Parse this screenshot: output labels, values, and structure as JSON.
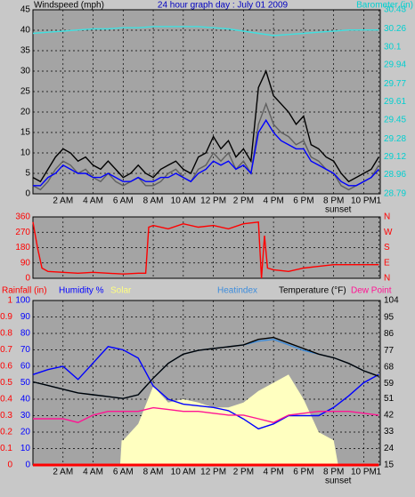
{
  "chart_data": [
    {
      "type": "line",
      "title": "24 hour graph day : July 01 2009",
      "ylabel": "Windspeed (mph)",
      "y2label": "Barometer (in)",
      "xlim": [
        0,
        23.1
      ],
      "xticks": [
        {
          "value": 2,
          "label": "2 AM"
        },
        {
          "value": 4,
          "label": "4 AM"
        },
        {
          "value": 6,
          "label": "6 AM"
        },
        {
          "value": 8,
          "label": "8 AM"
        },
        {
          "value": 10,
          "label": "10 AM"
        },
        {
          "value": 12,
          "label": "12 PM"
        },
        {
          "value": 14,
          "label": "2 PM"
        },
        {
          "value": 16,
          "label": "4 PM"
        },
        {
          "value": 18,
          "label": "6 PM"
        },
        {
          "value": 20,
          "label": "8 PM"
        },
        {
          "value": 22,
          "label": "10 PM"
        },
        {
          "value": 23,
          "label": "1"
        }
      ],
      "annotations": [
        {
          "text": "sunset",
          "x": 20.3
        }
      ],
      "ylim": [
        0,
        45
      ],
      "yticks": [
        0,
        5,
        10,
        15,
        20,
        25,
        30,
        35,
        40,
        45
      ],
      "y2lim": [
        28.79,
        30.43
      ],
      "y2ticks": [
        28.79,
        28.96,
        29.12,
        29.28,
        29.45,
        29.61,
        29.77,
        29.94,
        30.1,
        30.26,
        30.43
      ],
      "grid": true,
      "series": [
        {
          "color": "#000000",
          "x": [
            0,
            0.5,
            1,
            1.5,
            2,
            2.5,
            3,
            3.5,
            4,
            4.5,
            5,
            5.5,
            6,
            6.5,
            7,
            7.5,
            8,
            8.5,
            9,
            9.5,
            10,
            10.5,
            11,
            11.5,
            12,
            12.5,
            13,
            13.5,
            14,
            14.5,
            15,
            15.5,
            16,
            16.5,
            17,
            17.5,
            18,
            18.5,
            19,
            19.5,
            20,
            20.5,
            21,
            21.5,
            22,
            22.5,
            23
          ],
          "values": [
            4,
            3,
            6,
            9,
            11,
            10,
            8,
            9,
            7,
            6,
            8,
            6,
            4,
            5,
            7,
            5,
            4,
            6,
            7,
            8,
            6,
            5,
            9,
            10,
            14,
            11,
            13,
            9,
            11,
            8,
            26,
            30,
            24,
            22,
            20,
            17,
            19,
            12,
            11,
            9,
            8,
            5,
            3,
            4,
            5,
            6,
            9
          ]
        },
        {
          "color": "#606060",
          "x": [
            0,
            0.5,
            1,
            1.5,
            2,
            2.5,
            3,
            3.5,
            4,
            4.5,
            5,
            5.5,
            6,
            6.5,
            7,
            7.5,
            8,
            8.5,
            9,
            9.5,
            10,
            10.5,
            11,
            11.5,
            12,
            12.5,
            13,
            13.5,
            14,
            14.5,
            15,
            15.5,
            16,
            16.5,
            17,
            17.5,
            18,
            18.5,
            19,
            19.5,
            20,
            20.5,
            21,
            21.5,
            22,
            22.5,
            23
          ],
          "values": [
            2,
            1,
            3,
            6,
            8,
            7,
            5,
            6,
            4,
            3,
            5,
            3,
            2,
            3,
            4,
            2,
            2,
            3,
            5,
            6,
            4,
            3,
            6,
            7,
            10,
            8,
            10,
            6,
            8,
            5,
            17,
            22,
            17,
            15,
            14,
            12,
            13,
            9,
            8,
            6,
            5,
            2,
            1,
            2,
            3,
            4,
            7
          ]
        },
        {
          "color": "#0000ff",
          "x": [
            0,
            0.5,
            1,
            1.5,
            2,
            2.5,
            3,
            3.5,
            4,
            4.5,
            5,
            5.5,
            6,
            6.5,
            7,
            7.5,
            8,
            8.5,
            9,
            9.5,
            10,
            10.5,
            11,
            11.5,
            12,
            12.5,
            13,
            13.5,
            14,
            14.5,
            15,
            15.5,
            16,
            16.5,
            17,
            17.5,
            18,
            18.5,
            19,
            19.5,
            20,
            20.5,
            21,
            21.5,
            22,
            22.5,
            23
          ],
          "values": [
            2,
            2,
            4,
            5,
            7,
            6,
            5,
            5,
            4,
            4,
            5,
            4,
            3,
            3,
            4,
            3,
            3,
            4,
            4,
            5,
            4,
            3,
            5,
            6,
            8,
            7,
            8,
            6,
            7,
            5,
            15,
            18,
            15,
            13,
            12,
            11,
            11,
            8,
            7,
            6,
            5,
            3,
            2,
            2,
            3,
            4,
            6
          ]
        },
        {
          "color": "#40e0e0",
          "axis": "y2",
          "x": [
            0,
            1,
            2,
            3,
            4,
            5,
            6,
            7,
            8,
            9,
            10,
            11,
            12,
            13,
            14,
            15,
            16,
            17,
            18,
            19,
            20,
            21,
            22,
            23
          ],
          "values": [
            30.22,
            30.23,
            30.24,
            30.25,
            30.26,
            30.26,
            30.27,
            30.27,
            30.28,
            30.28,
            30.28,
            30.28,
            30.27,
            30.26,
            30.24,
            30.22,
            30.2,
            30.21,
            30.22,
            30.23,
            30.24,
            30.25,
            30.25,
            30.25
          ]
        }
      ]
    },
    {
      "type": "line",
      "xlim": [
        0,
        23.1
      ],
      "ylim": [
        0,
        360
      ],
      "yticks": [
        0,
        90,
        180,
        270,
        360
      ],
      "y2lim": [
        0,
        360
      ],
      "y2ticks": [
        {
          "value": 0,
          "label": "N"
        },
        {
          "value": 90,
          "label": "E"
        },
        {
          "value": 180,
          "label": "S"
        },
        {
          "value": 270,
          "label": "W"
        },
        {
          "value": 360,
          "label": "N"
        }
      ],
      "grid": true,
      "series": [
        {
          "color": "#ff0000",
          "x": [
            0,
            0.3,
            0.6,
            1,
            2,
            3,
            4,
            5,
            6,
            7,
            7.5,
            7.7,
            8,
            9,
            10,
            11,
            12,
            13,
            14,
            15,
            15.2,
            15.4,
            15.6,
            16,
            17,
            18,
            19,
            20,
            21,
            22,
            23
          ],
          "values": [
            330,
            180,
            60,
            40,
            35,
            30,
            35,
            30,
            25,
            30,
            30,
            300,
            310,
            290,
            320,
            300,
            310,
            290,
            320,
            330,
            0,
            250,
            60,
            50,
            40,
            60,
            70,
            80,
            80,
            80,
            80
          ]
        }
      ]
    },
    {
      "type": "line",
      "xlim": [
        0,
        23.1
      ],
      "xticks": [
        {
          "value": 2,
          "label": "2 AM"
        },
        {
          "value": 4,
          "label": "4 AM"
        },
        {
          "value": 6,
          "label": "6 AM"
        },
        {
          "value": 8,
          "label": "8 AM"
        },
        {
          "value": 10,
          "label": "10 AM"
        },
        {
          "value": 12,
          "label": "12 PM"
        },
        {
          "value": 14,
          "label": "2 PM"
        },
        {
          "value": 16,
          "label": "4 PM"
        },
        {
          "value": 18,
          "label": "6 PM"
        },
        {
          "value": 20,
          "label": "8 PM"
        },
        {
          "value": 22,
          "label": "10 PM"
        },
        {
          "value": 23,
          "label": "1"
        }
      ],
      "annotations": [
        {
          "text": "sunset",
          "x": 20.3
        }
      ],
      "ylim": [
        0,
        100
      ],
      "yticks": [
        0,
        10,
        20,
        30,
        40,
        50,
        60,
        70,
        80,
        90,
        100
      ],
      "rainlim": [
        0,
        1
      ],
      "rainticks": [
        0,
        0.1,
        0.2,
        0.3,
        0.4,
        0.5,
        0.6,
        0.7,
        0.8,
        0.9,
        1
      ],
      "y2lim": [
        15,
        104
      ],
      "y2ticks": [
        15,
        24,
        33,
        42,
        51,
        59,
        68,
        77,
        86,
        95,
        104
      ],
      "grid": true,
      "series": [
        {
          "name": "Solar",
          "color": "#ffffc0",
          "area": true,
          "x": [
            0,
            5.8,
            5.9,
            6,
            7,
            8,
            9,
            10,
            11,
            12,
            13,
            14,
            15,
            16,
            17,
            18,
            19,
            20,
            20.3,
            23
          ],
          "values": [
            0,
            0,
            15,
            15,
            25,
            48,
            38,
            40,
            38,
            35,
            35,
            38,
            45,
            50,
            55,
            40,
            20,
            15,
            0,
            0
          ]
        },
        {
          "name": "Rainfall (in)",
          "color": "#ff0000",
          "axis": "rain",
          "x": [
            0,
            23
          ],
          "values": [
            0,
            0
          ]
        },
        {
          "name": "Humidity %",
          "color": "#0000ff",
          "x": [
            0,
            1,
            2,
            3,
            4,
            5,
            6,
            7,
            8,
            9,
            10,
            11,
            12,
            13,
            14,
            15,
            16,
            17,
            18,
            19,
            20,
            21,
            22,
            23
          ],
          "values": [
            55,
            58,
            60,
            52,
            62,
            72,
            70,
            65,
            48,
            40,
            37,
            36,
            35,
            33,
            28,
            22,
            25,
            30,
            30,
            30,
            35,
            42,
            50,
            55
          ]
        },
        {
          "name": "Heatindex",
          "color": "#3c8cdc",
          "axis": "y2",
          "x": [
            0,
            1,
            2,
            3,
            4,
            5,
            6,
            7,
            8,
            9,
            10,
            11,
            12,
            13,
            14,
            15,
            16,
            17,
            18,
            19,
            20,
            21,
            22,
            23
          ],
          "values": [
            60,
            58,
            56,
            54,
            53,
            52,
            51,
            53,
            62,
            70,
            75,
            77,
            78,
            79,
            80,
            82,
            83,
            80,
            77,
            75,
            73,
            70,
            66,
            63
          ]
        },
        {
          "name": "Temperature (°F)",
          "color": "#000000",
          "axis": "y2",
          "x": [
            0,
            1,
            2,
            3,
            4,
            5,
            6,
            7,
            8,
            9,
            10,
            11,
            12,
            13,
            14,
            15,
            16,
            17,
            18,
            19,
            20,
            21,
            22,
            23
          ],
          "values": [
            60,
            58,
            56,
            54,
            53,
            52,
            51,
            53,
            62,
            70,
            75,
            77,
            78,
            79,
            80,
            83,
            84,
            81,
            78,
            75,
            73,
            70,
            66,
            63
          ]
        },
        {
          "name": "Dew Point",
          "color": "#ff1493",
          "axis": "y2",
          "x": [
            0,
            1,
            2,
            3,
            4,
            5,
            6,
            7,
            8,
            9,
            10,
            11,
            12,
            13,
            14,
            15,
            16,
            17,
            18,
            19,
            20,
            21,
            22,
            23
          ],
          "values": [
            40,
            40,
            40,
            38,
            42,
            44,
            44,
            44,
            46,
            45,
            44,
            44,
            43,
            42,
            42,
            40,
            38,
            42,
            43,
            44,
            44,
            44,
            43,
            42
          ]
        }
      ]
    }
  ]
}
